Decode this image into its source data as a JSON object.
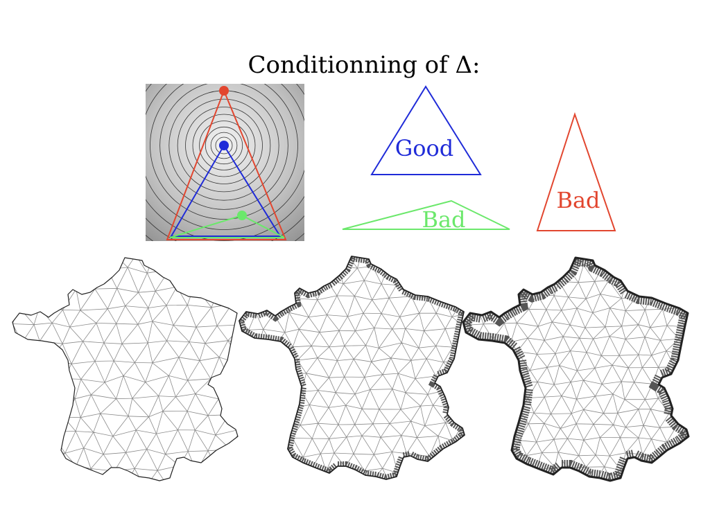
{
  "title": "Conditionning of Δ:",
  "triangles": {
    "good": {
      "label": "Good",
      "color": "#1f2bd8"
    },
    "bad_flat": {
      "label": "Bad",
      "color": "#6be86b"
    },
    "bad_tall": {
      "label": "Bad",
      "color": "#e2462f"
    }
  },
  "inset": {
    "points": [
      {
        "name": "red-point",
        "color": "#e2462f"
      },
      {
        "name": "blue-point",
        "color": "#1f2bd8"
      },
      {
        "name": "green-point",
        "color": "#6be86b"
      }
    ]
  },
  "meshes": [
    {
      "name": "coarse-mesh",
      "density": "coarse"
    },
    {
      "name": "medium-mesh",
      "density": "medium"
    },
    {
      "name": "fine-mesh",
      "density": "fine"
    }
  ]
}
